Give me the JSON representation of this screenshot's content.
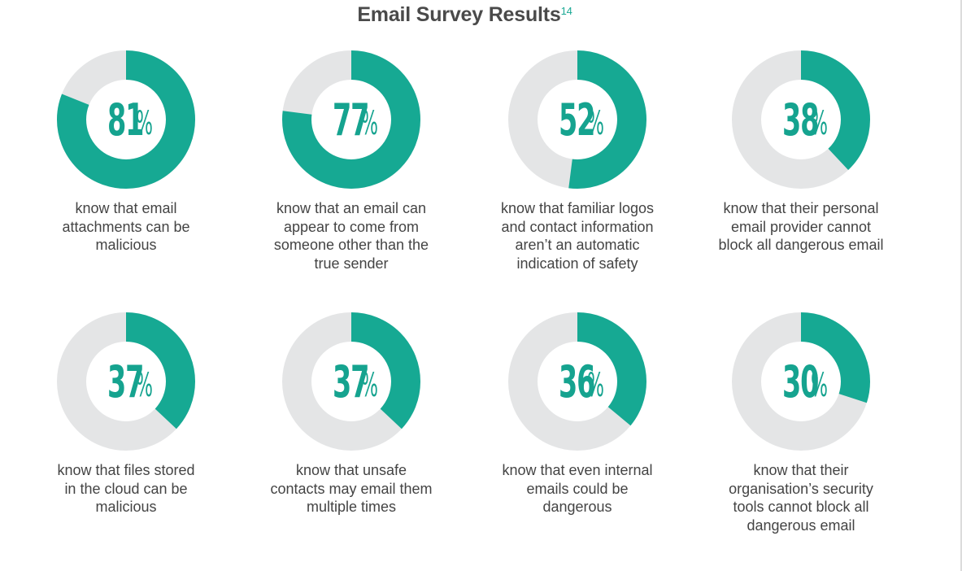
{
  "title": "Email Survey Results",
  "title_sup": "14",
  "colors": {
    "accent": "#16a993",
    "track": "#e4e5e6",
    "text": "#444444",
    "title": "#4a4a4a"
  },
  "chart_data": {
    "type": "donut",
    "title": "Email Survey Results",
    "items": [
      {
        "value": 81,
        "label": "81",
        "unit": "%",
        "description": [
          "know that email",
          "attachments can be",
          "malicious"
        ]
      },
      {
        "value": 77,
        "label": "77",
        "unit": "%",
        "description": [
          "know that an email can",
          "appear to come from",
          "someone other than the",
          "true sender"
        ]
      },
      {
        "value": 52,
        "label": "52",
        "unit": "%",
        "description": [
          "know that familiar logos",
          "and contact information",
          "aren’t an automatic",
          "indication of safety"
        ]
      },
      {
        "value": 38,
        "label": "38",
        "unit": "%",
        "description": [
          "know that their personal",
          "email provider cannot",
          "block all dangerous email"
        ]
      },
      {
        "value": 37,
        "label": "37",
        "unit": "%",
        "description": [
          "know that files stored",
          "in the cloud can be",
          "malicious"
        ]
      },
      {
        "value": 37,
        "label": "37",
        "unit": "%",
        "description": [
          "know that unsafe",
          "contacts may email them",
          "multiple times"
        ]
      },
      {
        "value": 36,
        "label": "36",
        "unit": "%",
        "description": [
          "know that even internal",
          "emails could be",
          "dangerous"
        ]
      },
      {
        "value": 30,
        "label": "30",
        "unit": "%",
        "description": [
          "know that their",
          "organisation’s security",
          "tools cannot block all",
          "dangerous email"
        ]
      }
    ]
  }
}
